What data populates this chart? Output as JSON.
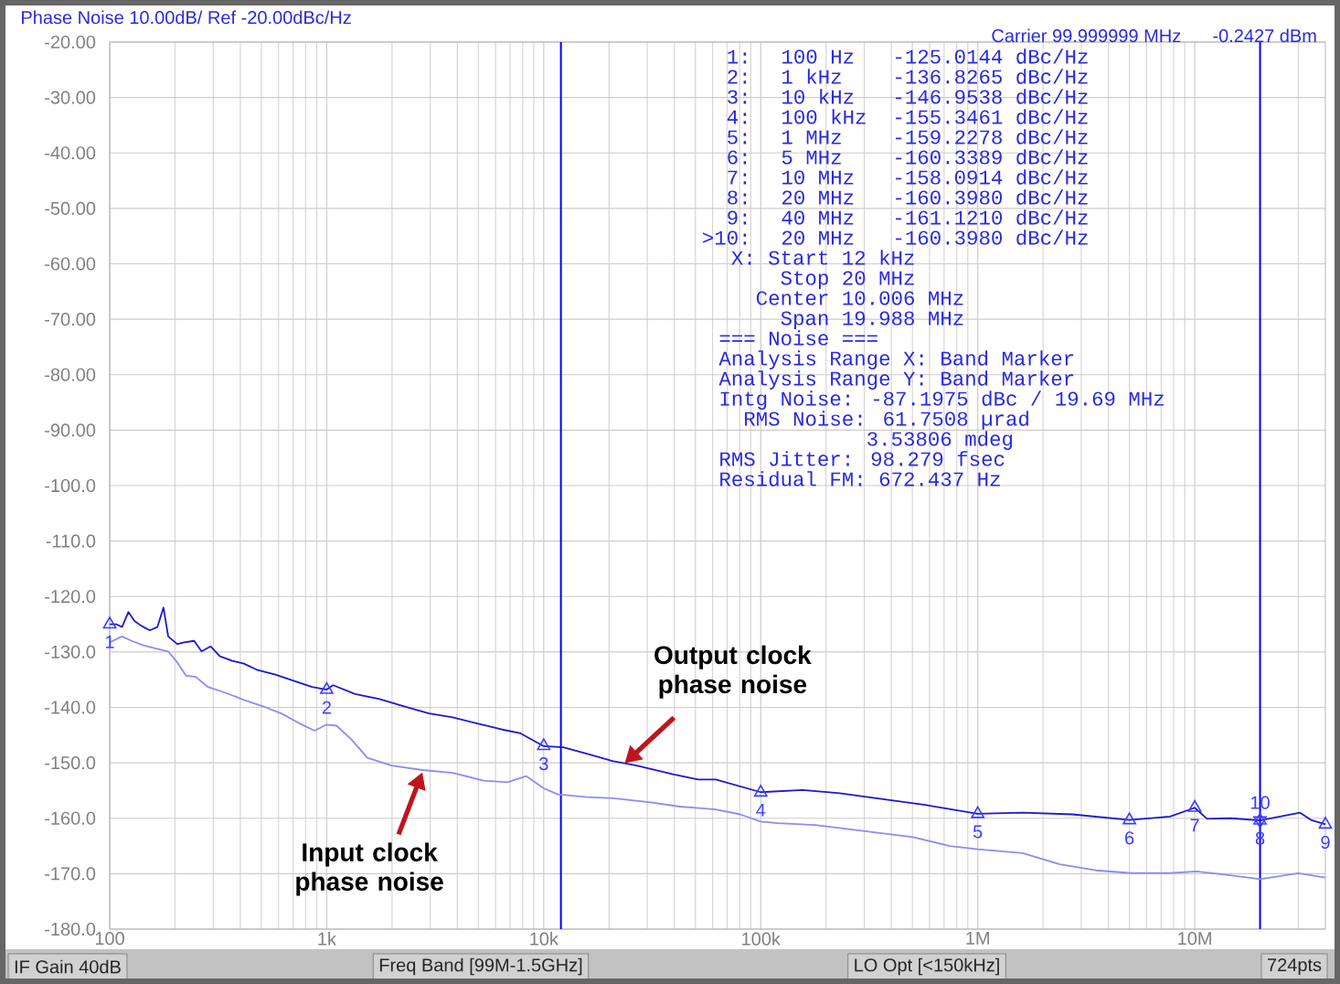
{
  "chart_data": {
    "type": "line",
    "title": "Phase Noise 10.00dB/ Ref -20.00dBc/Hz",
    "log": "x",
    "grid": true,
    "xlim": [
      100,
      40000000
    ],
    "ylim": [
      -180,
      -20
    ],
    "xticks": [
      {
        "value": 100,
        "label": "100"
      },
      {
        "value": 1000,
        "label": "1k"
      },
      {
        "value": 10000,
        "label": "10k"
      },
      {
        "value": 100000,
        "label": "100k"
      },
      {
        "value": 1000000,
        "label": "1M"
      },
      {
        "value": 10000000,
        "label": "10M"
      }
    ],
    "yticks": [
      {
        "value": -20,
        "label": "-20.00"
      },
      {
        "value": -30,
        "label": "-30.00"
      },
      {
        "value": -40,
        "label": "-40.00"
      },
      {
        "value": -50,
        "label": "-50.00"
      },
      {
        "value": -60,
        "label": "-60.00"
      },
      {
        "value": -70,
        "label": "-70.00"
      },
      {
        "value": -80,
        "label": "-80.00"
      },
      {
        "value": -90,
        "label": "-90.00"
      },
      {
        "value": -100,
        "label": "-100.0"
      },
      {
        "value": -110,
        "label": "-110.0"
      },
      {
        "value": -120,
        "label": "-120.0"
      },
      {
        "value": -130,
        "label": "-130.0"
      },
      {
        "value": -140,
        "label": "-140.0"
      },
      {
        "value": -150,
        "label": "-150.0"
      },
      {
        "value": -160,
        "label": "-160.0"
      },
      {
        "value": -170,
        "label": "-170.0"
      },
      {
        "value": -180,
        "label": "-180.0"
      }
    ],
    "series": [
      {
        "type": "line",
        "color": "#8c8cf0",
        "marker": "none",
        "x": [
          100,
          114,
          126,
          143,
          163,
          186,
          205,
          225,
          249,
          283,
          344,
          418,
          508,
          617,
          750,
          880,
          1000,
          1110,
          1300,
          1540,
          1990,
          2760,
          3800,
          5270,
          6810,
          8320,
          10000,
          11600,
          15900,
          20900,
          30500,
          42400,
          62000,
          80400,
          100000,
          120000,
          178000,
          296000,
          503000,
          743000,
          1000000,
          1610000,
          2390000,
          3500000,
          5100000,
          7700000,
          10200000,
          14600000,
          20000000,
          30000000,
          40000000
        ],
        "values": [
          -128.3,
          -127.2,
          -128.0,
          -128.8,
          -129.4,
          -129.9,
          -131.9,
          -134.3,
          -134.5,
          -136.3,
          -137.4,
          -138.7,
          -139.8,
          -141.1,
          -142.9,
          -144.2,
          -143.1,
          -143.3,
          -145.8,
          -149.1,
          -150.5,
          -151.3,
          -151.8,
          -153.2,
          -153.5,
          -152.4,
          -154.6,
          -155.7,
          -156.2,
          -156.4,
          -157.1,
          -157.9,
          -158.4,
          -159.3,
          -160.6,
          -160.9,
          -161.2,
          -162.3,
          -163.4,
          -165.0,
          -165.6,
          -166.3,
          -168.3,
          -169.4,
          -169.9,
          -169.9,
          -169.6,
          -170.3,
          -171.0,
          -169.9,
          -170.7
        ]
      },
      {
        "type": "line",
        "color": "#1a1ad2",
        "marker": "none",
        "x": [
          100,
          107,
          114,
          122,
          130,
          140,
          153,
          166,
          177,
          186,
          205,
          218,
          245,
          265,
          292,
          322,
          367,
          415,
          475,
          579,
          703,
          855,
          1000,
          1070,
          1350,
          1750,
          2270,
          2960,
          3800,
          4940,
          6430,
          7830,
          10000,
          12300,
          15900,
          20900,
          26800,
          39800,
          51400,
          62000,
          100000,
          156000,
          231000,
          341000,
          572000,
          1000000,
          1610000,
          2730000,
          5000000,
          7700000,
          10000000,
          11400000,
          14600000,
          20000000,
          30600000,
          34300000,
          40000000
        ],
        "values": [
          -125.0,
          -125.0,
          -125.5,
          -122.8,
          -124.4,
          -125.3,
          -126.1,
          -125.5,
          -122.0,
          -127.2,
          -128.6,
          -128.3,
          -128.0,
          -129.9,
          -129.0,
          -130.8,
          -131.6,
          -132.1,
          -133.2,
          -134.1,
          -135.2,
          -136.3,
          -136.8,
          -136.0,
          -137.6,
          -138.5,
          -139.8,
          -141.1,
          -141.8,
          -142.9,
          -144.0,
          -144.7,
          -147.0,
          -147.2,
          -148.4,
          -149.7,
          -150.5,
          -152.1,
          -153.0,
          -153.0,
          -155.3,
          -154.9,
          -155.5,
          -156.4,
          -157.6,
          -159.2,
          -159.0,
          -159.3,
          -160.3,
          -159.7,
          -158.1,
          -160.1,
          -160.0,
          -160.4,
          -159.0,
          -160.3,
          -161.1
        ]
      },
      {
        "type": "scatter",
        "color": "#3c3cff",
        "marker": "triangle",
        "x": [
          100,
          1000,
          10000,
          100000,
          1000000,
          5000000,
          10000000,
          20000000,
          40000000,
          20000000
        ],
        "values": [
          -125.0144,
          -136.8265,
          -146.9538,
          -155.3461,
          -159.2278,
          -160.3389,
          -158.0914,
          -160.398,
          -161.121,
          -160.398
        ]
      }
    ],
    "ref_lines": [
      {
        "axis": "x",
        "value": 12000,
        "color": "#0000ff"
      },
      {
        "axis": "x",
        "value": 20000000,
        "color": "#0000ff"
      }
    ],
    "annotations": [
      "Carrier 99.999999 MHz",
      "-0.2427 dBm",
      "1:",
      "100 Hz",
      "-125.0144 dBc/Hz",
      "2:",
      "1 kHz",
      "-136.8265 dBc/Hz",
      "3:",
      "10 kHz",
      "-146.9538 dBc/Hz",
      "4:",
      "100 kHz",
      "-155.3461 dBc/Hz",
      "5:",
      "1 MHz",
      "-159.2278 dBc/Hz",
      "6:",
      "5 MHz",
      "-160.3389 dBc/Hz",
      "7:",
      "10 MHz",
      "-158.0914 dBc/Hz",
      "8:",
      "20 MHz",
      "-160.3980 dBc/Hz",
      "9:",
      "40 MHz",
      "-161.1210 dBc/Hz",
      ">10:",
      "20 MHz",
      "-160.3980 dBc/Hz",
      "X: Start 12 kHz",
      "Stop 20 MHz",
      "Center 10.006 MHz",
      "Span 19.988 MHz",
      "=== Noise ===",
      "Analysis Range X: Band Marker",
      "Analysis Range Y: Band Marker",
      "Intg Noise: -87.1975 dBc / 19.69 MHz",
      "RMS Noise: 61.7508 µrad",
      "3.53806 mdeg",
      "RMS Jitter: 98.279 fsec",
      "Residual FM: 672.437 Hz",
      {
        "text": "1",
        "x": 100,
        "y": -125.0144
      },
      {
        "text": "2",
        "x": 1000,
        "y": -136.8265
      },
      {
        "text": "3",
        "x": 10000,
        "y": -146.9538
      },
      {
        "text": "4",
        "x": 100000,
        "y": -155.3461
      },
      {
        "text": "5",
        "x": 1000000,
        "y": -159.2278
      },
      {
        "text": "6",
        "x": 5000000,
        "y": -160.3389
      },
      {
        "text": "7",
        "x": 10000000,
        "y": -158.0914
      },
      {
        "text": "8",
        "x": 20000000,
        "y": -160.398
      },
      {
        "text": "9",
        "x": 40000000,
        "y": -161.121
      },
      {
        "text": "10",
        "x": 20000000,
        "y": -160.398
      },
      {
        "text": "Output clock phase noise",
        "x": 23600,
        "y": -150.1
      },
      {
        "text": "Input clock phase noise",
        "x": 2760,
        "y": -151.7
      },
      "IF Gain 40dB",
      "Freq Band [99M-1.5GHz]",
      "LO Opt [<150kHz]",
      "724pts"
    ]
  }
}
